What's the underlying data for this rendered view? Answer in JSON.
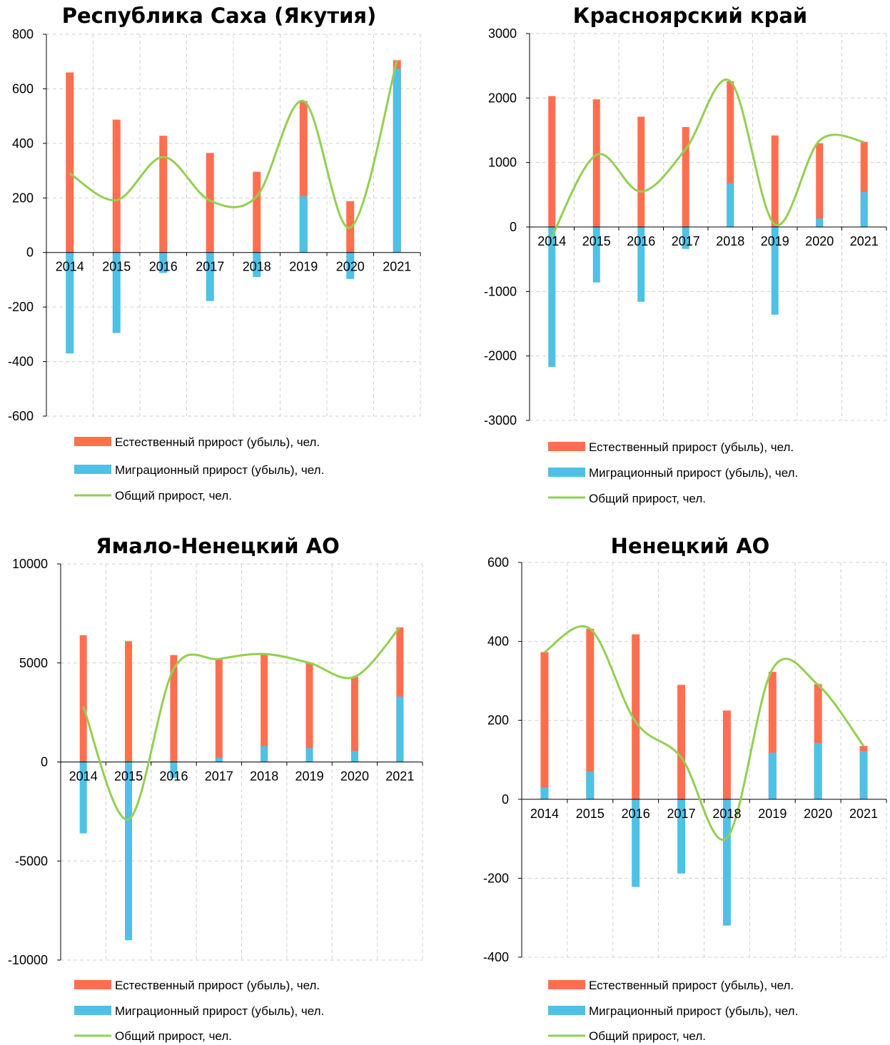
{
  "colors": {
    "natural": "#ff6f4f",
    "migration": "#4ec1e6",
    "total": "#92d050"
  },
  "legend": {
    "natural": "Естественный прирост (убыль), чел.",
    "migration": "Миграционный прирост (убыль), чел.",
    "total": "Общий прирост, чел."
  },
  "chart_data": [
    {
      "type": "bar",
      "title": "Республика Саха (Якутия)",
      "categories": [
        "2014",
        "2015",
        "2016",
        "2017",
        "2018",
        "2019",
        "2020",
        "2021"
      ],
      "ylim": [
        -600,
        800
      ],
      "yticks": [
        -600,
        -400,
        -200,
        0,
        200,
        400,
        600,
        800
      ],
      "grid": true,
      "legend_position": "bottom",
      "series": [
        {
          "name": "Естественный прирост (убыль), чел.",
          "kind": "bar",
          "values": [
            660,
            487,
            428,
            365,
            296,
            555,
            188,
            705
          ]
        },
        {
          "name": "Миграционный прирост (убыль), чел.",
          "kind": "bar",
          "values": [
            -370,
            -295,
            -75,
            -178,
            -90,
            207,
            -97,
            673
          ]
        },
        {
          "name": "Общий прирост, чел.",
          "kind": "line",
          "values": [
            290,
            192,
            350,
            190,
            206,
            555,
            91,
            705
          ]
        }
      ]
    },
    {
      "type": "bar",
      "title": "Красноярский край",
      "categories": [
        "2014",
        "2015",
        "2016",
        "2017",
        "2018",
        "2019",
        "2020",
        "2021"
      ],
      "ylim": [
        -3000,
        3000
      ],
      "yticks": [
        -3000,
        -2000,
        -1000,
        0,
        1000,
        2000,
        3000
      ],
      "grid": true,
      "legend_position": "bottom",
      "series": [
        {
          "name": "Естественный прирост (убыль), чел.",
          "kind": "bar",
          "values": [
            2030,
            1980,
            1710,
            1550,
            2260,
            1420,
            1300,
            1320
          ]
        },
        {
          "name": "Миграционный прирост (убыль), чел.",
          "kind": "bar",
          "values": [
            -2170,
            -860,
            -1160,
            -340,
            680,
            -1360,
            130,
            540
          ]
        },
        {
          "name": "Общий прирост, чел.",
          "kind": "line",
          "values": [
            -150,
            1120,
            550,
            1210,
            2260,
            40,
            1340,
            1320
          ]
        }
      ]
    },
    {
      "type": "bar",
      "title": "Ямало-Ненецкий АО",
      "categories": [
        "2014",
        "2015",
        "2016",
        "2017",
        "2018",
        "2019",
        "2020",
        "2021"
      ],
      "ylim": [
        -10000,
        10000
      ],
      "yticks": [
        -10000,
        -5000,
        0,
        5000,
        10000
      ],
      "grid": true,
      "legend_position": "bottom",
      "series": [
        {
          "name": "Естественный прирост (убыль), чел.",
          "kind": "bar",
          "values": [
            6400,
            6100,
            5400,
            5200,
            5500,
            5000,
            4300,
            6800
          ]
        },
        {
          "name": "Миграционный прирост (убыль), чел.",
          "kind": "bar",
          "values": [
            -3600,
            -9000,
            -800,
            200,
            800,
            700,
            560,
            3300
          ]
        },
        {
          "name": "Общий прирост, чел.",
          "kind": "line",
          "values": [
            2800,
            -2900,
            4700,
            5200,
            5450,
            5000,
            4300,
            6800
          ]
        }
      ]
    },
    {
      "type": "bar",
      "title": "Ненецкий АО",
      "categories": [
        "2014",
        "2015",
        "2016",
        "2017",
        "2018",
        "2019",
        "2020",
        "2021"
      ],
      "ylim": [
        -400,
        600
      ],
      "yticks": [
        -400,
        -200,
        0,
        200,
        400,
        600
      ],
      "grid": true,
      "legend_position": "bottom",
      "series": [
        {
          "name": "Естественный прирост (убыль), чел.",
          "kind": "bar",
          "values": [
            373,
            432,
            418,
            290,
            225,
            323,
            292,
            135
          ]
        },
        {
          "name": "Миграционный прирост (убыль), чел.",
          "kind": "bar",
          "values": [
            30,
            70,
            -222,
            -188,
            -320,
            118,
            143,
            122
          ]
        },
        {
          "name": "Общий прирост, чел.",
          "kind": "line",
          "values": [
            373,
            432,
            196,
            106,
            -98,
            330,
            290,
            135
          ]
        }
      ]
    }
  ]
}
